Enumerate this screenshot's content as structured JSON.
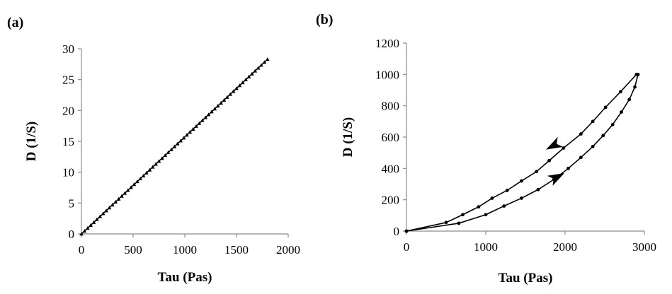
{
  "chart_data": [
    {
      "panel": "(a)",
      "type": "scatter",
      "xlabel": "Tau (Pas)",
      "ylabel": "D (1/S)",
      "xlim": [
        0,
        2000
      ],
      "ylim": [
        0,
        30
      ],
      "xticks": [
        0,
        500,
        1000,
        1500,
        2000
      ],
      "yticks": [
        0,
        5,
        10,
        15,
        20,
        25,
        30
      ],
      "marker": "triangle",
      "grid": false,
      "series": [
        {
          "line": {
            "x": [
              0,
              1800
            ],
            "y": [
              0,
              28.3
            ]
          },
          "points": {
            "x_start": 0,
            "x_end": 1800,
            "count": 60,
            "slope": 0.01572
          }
        }
      ]
    },
    {
      "panel": "(b)",
      "type": "line",
      "xlabel": "Tau (Pas)",
      "ylabel": "D (1/S)",
      "xlim": [
        0,
        3000
      ],
      "ylim": [
        0,
        1200
      ],
      "xticks": [
        0,
        1000,
        2000,
        3000
      ],
      "yticks": [
        0,
        200,
        400,
        600,
        800,
        1000,
        1200
      ],
      "marker": "circle",
      "grid": false,
      "series": [
        {
          "direction": "up",
          "x": [
            0,
            660,
            1000,
            1230,
            1450,
            1660,
            1860,
            2040,
            2200,
            2350,
            2480,
            2600,
            2710,
            2810,
            2880,
            2920
          ],
          "y": [
            0,
            50,
            105,
            160,
            210,
            265,
            330,
            400,
            470,
            540,
            610,
            680,
            760,
            840,
            920,
            1000
          ]
        },
        {
          "direction": "down",
          "x": [
            2900,
            2700,
            2510,
            2350,
            2200,
            1980,
            1800,
            1640,
            1450,
            1270,
            1080,
            910,
            710,
            500,
            0
          ],
          "y": [
            1000,
            890,
            790,
            700,
            620,
            530,
            450,
            380,
            320,
            260,
            210,
            155,
            105,
            55,
            0
          ]
        }
      ],
      "arrows": [
        {
          "direction": "up",
          "x": 1880,
          "y": 340
        },
        {
          "direction": "down",
          "x": 1870,
          "y": 550
        }
      ]
    }
  ]
}
